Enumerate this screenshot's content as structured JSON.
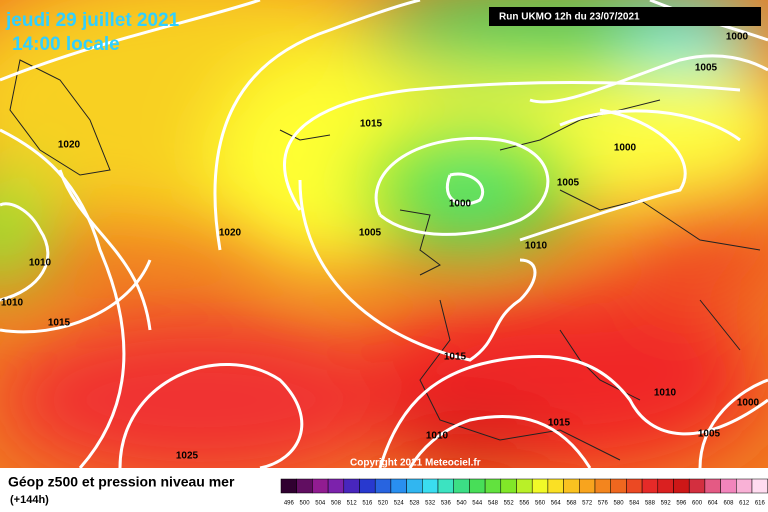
{
  "header": {
    "date": "jeudi 29 juillet 2021",
    "time": "14:00 locale",
    "run": "Run UKMO 12h du 23/07/2021"
  },
  "isobar_labels": [
    "1000",
    "1005",
    "1015",
    "1020",
    "1000",
    "1005",
    "1000",
    "1020",
    "1005",
    "1010",
    "1010",
    "1010",
    "1015",
    "1015",
    "1010",
    "1000",
    "1015",
    "1010",
    "1005",
    "1025"
  ],
  "copyright": "Copyright 2021 Meteociel.fr",
  "legend": {
    "title": "Géop z500 et pression niveau mer",
    "lead": "(+144h)",
    "colorbar": [
      496,
      500,
      504,
      508,
      512,
      516,
      520,
      524,
      528,
      532,
      536,
      540,
      544,
      548,
      552,
      556,
      560,
      564,
      568,
      572,
      576,
      580,
      584,
      588,
      592,
      596,
      600,
      604,
      608,
      612,
      616
    ]
  }
}
